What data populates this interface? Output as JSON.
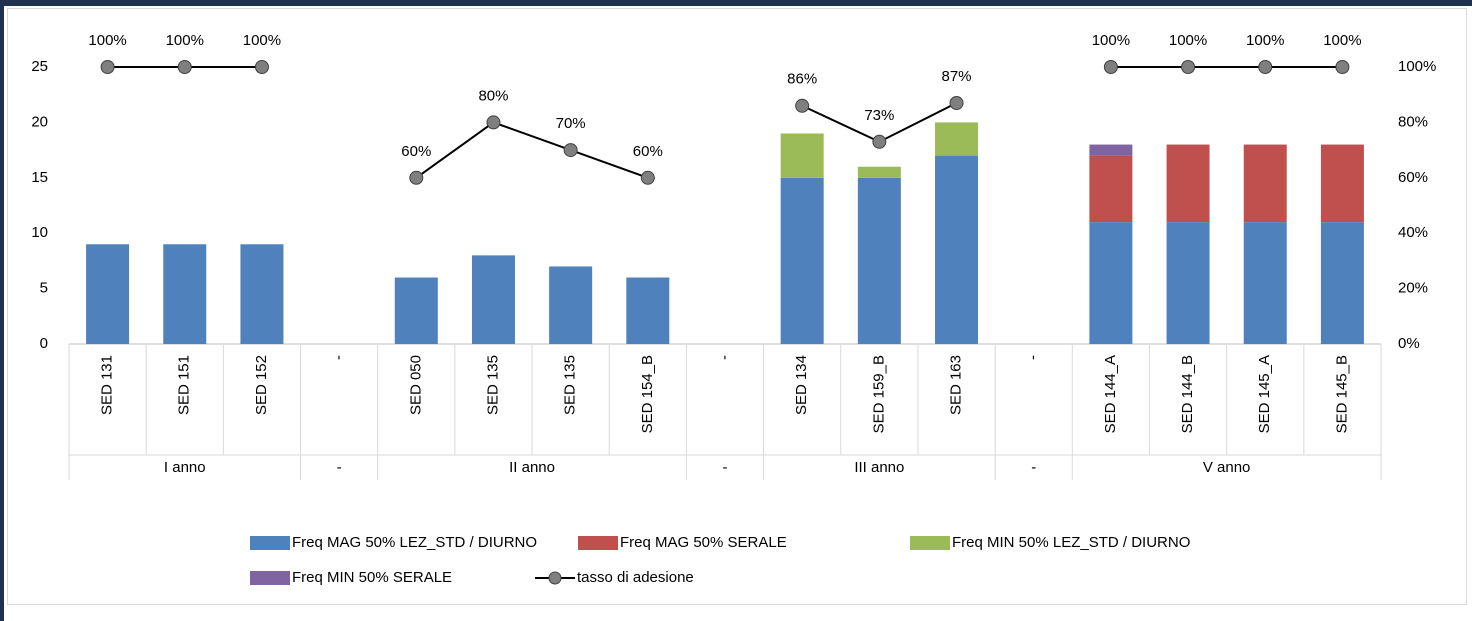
{
  "chart_data": {
    "type": "bar",
    "stacked": true,
    "categories": [
      "SED 131",
      "SED 151",
      "SED 152",
      "-",
      "SED 050",
      "SED 135",
      "SED 135",
      "SED 154_B",
      "-",
      "SED 134",
      "SED 159_B",
      "SED 163",
      "-",
      "SED 144_A",
      "SED 144_B",
      "SED 145_A",
      "SED 145_B"
    ],
    "category_groups": [
      "I anno",
      "I anno",
      "I anno",
      "-",
      "II anno",
      "II anno",
      "II anno",
      "II anno",
      "-",
      "III anno",
      "III anno",
      "III anno",
      "-",
      "V anno",
      "V anno",
      "V anno",
      "V anno"
    ],
    "series": [
      {
        "name": "Freq MAG 50% LEZ_STD / DIURNO",
        "type": "bar",
        "color": "#4f81bd",
        "values": [
          9,
          9,
          9,
          null,
          6,
          8,
          7,
          6,
          null,
          15,
          15,
          17,
          null,
          11,
          11,
          11,
          11
        ]
      },
      {
        "name": "Freq MAG 50% SERALE",
        "type": "bar",
        "color": "#c0504d",
        "values": [
          null,
          null,
          null,
          null,
          null,
          null,
          null,
          null,
          null,
          null,
          null,
          null,
          null,
          6,
          7,
          7,
          7
        ]
      },
      {
        "name": "Freq MIN 50% LEZ_STD / DIURNO",
        "type": "bar",
        "color": "#9bbb59",
        "values": [
          null,
          null,
          null,
          null,
          null,
          null,
          null,
          null,
          null,
          4,
          1,
          3,
          null,
          null,
          null,
          null,
          null
        ]
      },
      {
        "name": "Freq MIN 50% SERALE",
        "type": "bar",
        "color": "#8064a2",
        "values": [
          null,
          null,
          null,
          null,
          null,
          null,
          null,
          null,
          null,
          null,
          null,
          null,
          null,
          1,
          null,
          null,
          null
        ]
      },
      {
        "name": "tasso di adesione",
        "type": "line",
        "axis": "y2",
        "color": "#000000",
        "marker_color": "#7f7f7f",
        "values": [
          100,
          100,
          100,
          null,
          60,
          80,
          70,
          60,
          null,
          86,
          73,
          87,
          null,
          100,
          100,
          100,
          100
        ],
        "value_labels": [
          "100%",
          "100%",
          "100%",
          null,
          "60%",
          "80%",
          "70%",
          "60%",
          null,
          "86%",
          "73%",
          "87%",
          null,
          "100%",
          "100%",
          "100%",
          "100%"
        ]
      }
    ],
    "ylim": [
      0,
      25
    ],
    "yticks": [
      0,
      5,
      10,
      15,
      20,
      25
    ],
    "y2lim": [
      0,
      100
    ],
    "y2ticks": [
      {
        "value": 0,
        "label": "0%"
      },
      {
        "value": 20,
        "label": "20%"
      },
      {
        "value": 40,
        "label": "40%"
      },
      {
        "value": 60,
        "label": "60%"
      },
      {
        "value": 80,
        "label": "80%"
      },
      {
        "value": 100,
        "label": "100%"
      }
    ],
    "grid": false,
    "legend": "bottom"
  }
}
